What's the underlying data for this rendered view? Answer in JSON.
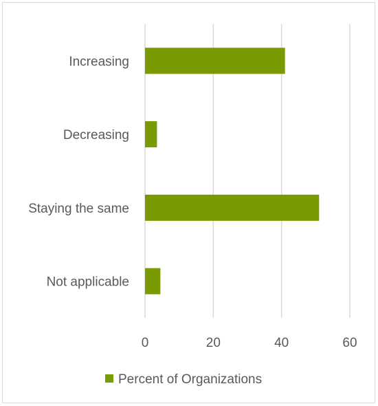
{
  "chart_data": {
    "type": "bar",
    "orientation": "horizontal",
    "categories": [
      "Increasing",
      "Decreasing",
      "Staying the same",
      "Not applicable"
    ],
    "series": [
      {
        "name": "Percent of Organizations",
        "values": [
          41,
          3.5,
          51,
          4.5
        ]
      }
    ],
    "xlim": [
      0,
      60
    ],
    "xticks": [
      0,
      20,
      40,
      60
    ],
    "grid": "vertical",
    "legend": "bottom",
    "colors": {
      "bar": "#7a9a01",
      "grid": "#d9d9d9",
      "text": "#595959"
    }
  }
}
